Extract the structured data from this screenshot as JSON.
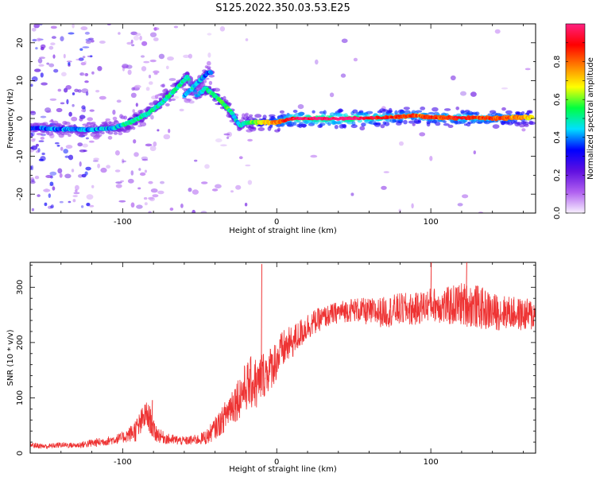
{
  "figure_title": "S125.2022.350.03.53.E25",
  "chart_data": [
    {
      "type": "heatmap",
      "title": "",
      "xlabel": "Height of straight line (km)",
      "ylabel": "Frequency (Hz)",
      "xlim": [
        -160,
        168
      ],
      "ylim": [
        -25,
        25
      ],
      "x_ticks": [
        -100,
        0,
        100
      ],
      "y_ticks": [
        -20,
        -10,
        0,
        10,
        20
      ],
      "grid": false,
      "colorbar": {
        "label": "Normalized spectral amplitude",
        "range": [
          0,
          1
        ],
        "ticks": [
          0.0,
          0.2,
          0.4,
          0.6,
          0.8
        ],
        "colors": [
          "#f8f0ff",
          "#b060f0",
          "#6010e0",
          "#0000ff",
          "#00e0ff",
          "#00ff40",
          "#ffff00",
          "#ff8000",
          "#ff0000",
          "#ff2080"
        ]
      },
      "ridge": {
        "x": [
          -160,
          -140,
          -120,
          -105,
          -95,
          -85,
          -75,
          -65,
          -58,
          -52,
          -46,
          -40,
          -35,
          -30,
          -27,
          -24,
          -20,
          -10,
          0,
          10,
          30,
          50,
          70,
          80,
          90,
          100,
          110,
          120,
          130,
          140,
          150,
          160,
          166
        ],
        "y": [
          -2.5,
          -2.8,
          -3,
          -2.5,
          -1,
          1,
          4,
          8,
          11,
          6,
          8,
          6,
          4,
          2,
          0,
          -2,
          -1,
          -1,
          -1,
          0,
          0,
          0,
          0.2,
          0.5,
          0.8,
          0.3,
          0.2,
          0.2,
          0.2,
          0,
          0.2,
          0.3,
          0.3
        ],
        "amplitude": [
          0.35,
          0.4,
          0.4,
          0.45,
          0.5,
          0.5,
          0.5,
          0.5,
          0.5,
          0.4,
          0.5,
          0.55,
          0.55,
          0.5,
          0.45,
          0.45,
          0.5,
          0.65,
          0.8,
          0.95,
          1.0,
          1.0,
          0.9,
          0.85,
          0.85,
          0.85,
          0.85,
          0.9,
          0.85,
          0.85,
          0.8,
          0.75,
          0.7
        ]
      },
      "secondary_branch": {
        "x": [
          -60,
          -55,
          -50,
          -45,
          -42
        ],
        "y": [
          6,
          8,
          10,
          12,
          12
        ],
        "amplitude": [
          0.4,
          0.45,
          0.45,
          0.4,
          0.35
        ]
      }
    },
    {
      "type": "line",
      "title": "",
      "xlabel": "Height of straight line (km)",
      "ylabel": "SNR (10 * v/v)",
      "xlim": [
        -160,
        168
      ],
      "ylim": [
        0,
        345
      ],
      "x_ticks": [
        -100,
        0,
        100
      ],
      "y_ticks": [
        0,
        100,
        200,
        300
      ],
      "grid": false,
      "line_color": "#ee3333",
      "series": [
        {
          "x": [
            -160,
            -150,
            -140,
            -130,
            -120,
            -110,
            -100,
            -95,
            -90,
            -85,
            -82,
            -80,
            -75,
            -70,
            -60,
            -50,
            -45,
            -40,
            -35,
            -30,
            -25,
            -20,
            -15,
            -12,
            -10,
            -5,
            0,
            5,
            10,
            20,
            30,
            40,
            50,
            60,
            70,
            80,
            90,
            100,
            110,
            120,
            130,
            140,
            150,
            160,
            168
          ],
          "values": [
            15,
            12,
            15,
            14,
            18,
            22,
            28,
            35,
            45,
            70,
            60,
            40,
            30,
            25,
            22,
            25,
            30,
            45,
            60,
            85,
            100,
            120,
            130,
            120,
            140,
            150,
            170,
            190,
            200,
            230,
            245,
            255,
            260,
            255,
            255,
            260,
            260,
            270,
            265,
            270,
            265,
            255,
            255,
            250,
            250
          ],
          "noise": [
            5,
            5,
            5,
            5,
            8,
            8,
            10,
            15,
            25,
            25,
            25,
            20,
            12,
            10,
            8,
            10,
            15,
            20,
            25,
            35,
            40,
            45,
            50,
            50,
            45,
            40,
            40,
            35,
            30,
            25,
            20,
            20,
            22,
            25,
            28,
            30,
            30,
            30,
            35,
            40,
            40,
            35,
            30,
            30,
            30
          ],
          "spikes": [
            {
              "x": -10,
              "value": 342
            },
            {
              "x": -81,
              "value": 96
            },
            {
              "x": 100,
              "value": 345
            },
            {
              "x": 123,
              "value": 345
            }
          ]
        }
      ]
    }
  ]
}
